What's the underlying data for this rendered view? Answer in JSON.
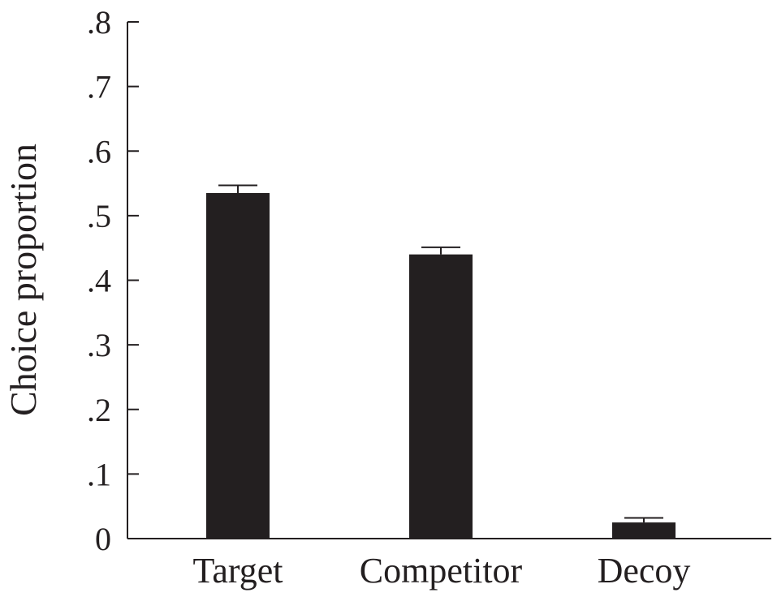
{
  "chart_data": {
    "type": "bar",
    "title": "",
    "xlabel": "",
    "ylabel": "Choice proportion",
    "categories": [
      "Target",
      "Competitor",
      "Decoy"
    ],
    "series": [
      {
        "values": [
          0.535,
          0.44,
          0.025
        ],
        "error": [
          0.012,
          0.011,
          0.007
        ]
      }
    ],
    "ylim": [
      0,
      0.8
    ],
    "yticks": [
      0,
      0.1,
      0.2,
      0.3,
      0.4,
      0.5,
      0.6,
      0.7,
      0.8
    ],
    "ytick_labels": [
      "0",
      ".1",
      ".2",
      ".3",
      ".4",
      ".5",
      ".6",
      ".7",
      ".8"
    ],
    "grid": false,
    "bar_color": "#231f20"
  }
}
